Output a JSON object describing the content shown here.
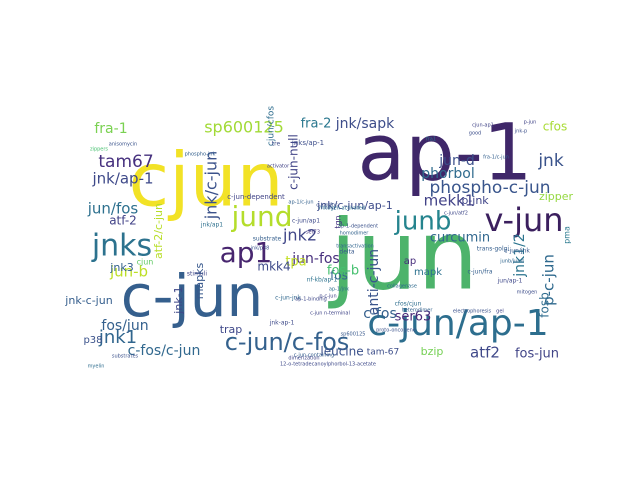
{
  "word_cloud": {
    "words": [
      {
        "text": "jun",
        "color": "#4db36b"
      },
      {
        "text": "ap-1",
        "color": "#3f2769"
      },
      {
        "text": "cjun",
        "color": "#f2e226"
      },
      {
        "text": "c-jun",
        "color": "#355f8d"
      },
      {
        "text": "c-jun/ap-1",
        "color": "#2d6e8e"
      },
      {
        "text": "jnks",
        "color": "#2c728e"
      },
      {
        "text": "junb",
        "color": "#25848e"
      },
      {
        "text": "v-jun",
        "color": "#3b1f5e"
      },
      {
        "text": "jund",
        "color": "#b4dd2b"
      },
      {
        "text": "ap1",
        "color": "#48266f"
      },
      {
        "text": "c-jun/c-fos",
        "color": "#34618d"
      },
      {
        "text": "phospho-c-jun",
        "color": "#39558c"
      },
      {
        "text": "sp600125",
        "color": "#a2da37"
      },
      {
        "text": "tam67",
        "color": "#46307e"
      },
      {
        "text": "jnk/ap-1",
        "color": "#3e4989"
      },
      {
        "text": "jnk1",
        "color": "#31668e"
      },
      {
        "text": "jun/fos",
        "color": "#2d708e"
      },
      {
        "text": "jnk/c-jun",
        "color": "#3b528b"
      },
      {
        "text": "jnk2",
        "color": "#404688"
      },
      {
        "text": "jun-b",
        "color": "#bddf26"
      },
      {
        "text": "jun-fos",
        "color": "#472f7d"
      },
      {
        "text": "jnk/sapk",
        "color": "#3d4d8a"
      },
      {
        "text": "jun-d",
        "color": "#3c508b"
      },
      {
        "text": "phorbol",
        "color": "#2f6b8e"
      },
      {
        "text": "mekk1",
        "color": "#414287"
      },
      {
        "text": "fra-1",
        "color": "#7ad151"
      },
      {
        "text": "fra-2",
        "color": "#2a778e"
      },
      {
        "text": "cfos",
        "color": "#a8db34"
      },
      {
        "text": "jnk",
        "color": "#3a538b"
      },
      {
        "text": "c-fos/c-jun",
        "color": "#31688e"
      },
      {
        "text": "fos/jun",
        "color": "#34608d"
      },
      {
        "text": "atf2",
        "color": "#3f4889"
      },
      {
        "text": "fos-jun",
        "color": "#414487"
      },
      {
        "text": "bzip",
        "color": "#75d054"
      },
      {
        "text": "leucine",
        "color": "#3b518b"
      },
      {
        "text": "ser63",
        "color": "#482878"
      },
      {
        "text": "c-fos",
        "color": "#35608d"
      },
      {
        "text": "anti-c-jun",
        "color": "#3a548c"
      },
      {
        "text": "p-c-jun",
        "color": "#306a8e"
      },
      {
        "text": "jnk1/2",
        "color": "#2b748e"
      },
      {
        "text": "curcumin",
        "color": "#31678e"
      },
      {
        "text": "tpa",
        "color": "#c2df23"
      },
      {
        "text": "mkk4",
        "color": "#3e4a89"
      },
      {
        "text": "fos",
        "color": "#33638d"
      },
      {
        "text": "mapk",
        "color": "#2c718e"
      },
      {
        "text": "ap",
        "color": "#472d7b"
      },
      {
        "text": "p-jnk",
        "color": "#404588"
      },
      {
        "text": "zipper",
        "color": "#95d840"
      },
      {
        "text": "fosb",
        "color": "#2f6c8e"
      },
      {
        "text": "tam-67",
        "color": "#3d4e8a"
      },
      {
        "text": "atf-2",
        "color": "#414287"
      },
      {
        "text": "atf-2/c-jun",
        "color": "#b8de29"
      },
      {
        "text": "mapks",
        "color": "#38588c"
      },
      {
        "text": "jnk3",
        "color": "#34618d"
      },
      {
        "text": "jnk-1",
        "color": "#3f4788"
      },
      {
        "text": "jnk-c-jun",
        "color": "#355e8d"
      },
      {
        "text": "p38",
        "color": "#3b528b"
      },
      {
        "text": "pma",
        "color": "#29798e"
      },
      {
        "text": "jnk/c-jun/ap-1",
        "color": "#3e4c8a"
      },
      {
        "text": "cjun/cfos",
        "color": "#2e6d8e"
      },
      {
        "text": "c-jun-null",
        "color": "#414487"
      },
      {
        "text": "tgn",
        "color": "#453581"
      },
      {
        "text": "fos-b",
        "color": "#46c06f"
      },
      {
        "text": "trap",
        "color": "#3f4889"
      },
      {
        "text": "cjun",
        "color": "#5ec962"
      },
      {
        "text": "jnks/ap-1",
        "color": "#3d4e8a"
      },
      {
        "text": "c-jun-dependent",
        "color": "#414487"
      },
      {
        "text": "substrate",
        "color": "#355f8d"
      },
      {
        "text": "jnk/ap1",
        "color": "#2d708e"
      },
      {
        "text": "ap-1-dependent",
        "color": "#3b528b"
      },
      {
        "text": "c-jun/ap1",
        "color": "#3e4a89"
      },
      {
        "text": "nf-kb/ap-1",
        "color": "#2c728e"
      },
      {
        "text": "p-c-jun",
        "color": "#404688"
      },
      {
        "text": "phospho-jnk",
        "color": "#34608d"
      },
      {
        "text": "anisomycin",
        "color": "#3a538b"
      },
      {
        "text": "c-jun n-terminal",
        "color": "#404588"
      },
      {
        "text": "sp600125",
        "color": "#38588c"
      },
      {
        "text": "transactivation",
        "color": "#31668e"
      },
      {
        "text": "12-o-tetradecanoylphorbol-13-acetate",
        "color": "#3e4989"
      },
      {
        "text": "dimerization",
        "color": "#404588"
      },
      {
        "text": "substrates",
        "color": "#3b518b"
      },
      {
        "text": "c-jun-containing",
        "color": "#355e8d"
      },
      {
        "text": "collagenase",
        "color": "#2f6b8e"
      },
      {
        "text": "jun/ap-1",
        "color": "#3f4889"
      },
      {
        "text": "c-jun/jnk",
        "color": "#38598c"
      },
      {
        "text": "heterodimer",
        "color": "#33628d"
      },
      {
        "text": "mitogen",
        "color": "#3d4d8a"
      },
      {
        "text": "fra1",
        "color": "#2a768e"
      },
      {
        "text": "p-jun",
        "color": "#414487"
      },
      {
        "text": "jnk-p",
        "color": "#3c4f8a"
      },
      {
        "text": "ap-1/c-jun",
        "color": "#34618d"
      },
      {
        "text": "cfos/cjun",
        "color": "#2e6e8e"
      },
      {
        "text": "zippers",
        "color": "#46c06f"
      },
      {
        "text": "proto-oncogene",
        "color": "#3b528b"
      },
      {
        "text": "c-jun/fra",
        "color": "#355f8d"
      },
      {
        "text": "stimuli",
        "color": "#404688"
      },
      {
        "text": "jnk-ap-1",
        "color": "#3e4a89"
      },
      {
        "text": "c-jun-jnk",
        "color": "#31688e"
      },
      {
        "text": "ap-1-binding",
        "color": "#3f4788"
      },
      {
        "text": "mitogen-activated",
        "color": "#2c718e"
      },
      {
        "text": "c-jun/fos",
        "color": "#39568c"
      },
      {
        "text": "activator",
        "color": "#414287"
      },
      {
        "text": "ser73",
        "color": "#453882"
      },
      {
        "text": "homodimer",
        "color": "#33638d"
      },
      {
        "text": "tre",
        "color": "#3e4c8a"
      },
      {
        "text": "delta",
        "color": "#38598c"
      },
      {
        "text": "ap-1/jnk",
        "color": "#2d708e"
      },
      {
        "text": "electrophoresis",
        "color": "#3b528b"
      },
      {
        "text": "fra-1/c-jun",
        "color": "#34608d"
      },
      {
        "text": "c-jun/atf2",
        "color": "#3f4889"
      },
      {
        "text": "junb/jund",
        "color": "#31668e"
      },
      {
        "text": "gel",
        "color": "#404588"
      },
      {
        "text": "good",
        "color": "#3d4e8a"
      },
      {
        "text": "trans-golgi",
        "color": "#355e8d"
      },
      {
        "text": "myelin",
        "color": "#2e6d8e"
      },
      {
        "text": "jnk/p38",
        "color": "#3b518b"
      },
      {
        "text": "cjun-ap1",
        "color": "#414487"
      }
    ]
  }
}
